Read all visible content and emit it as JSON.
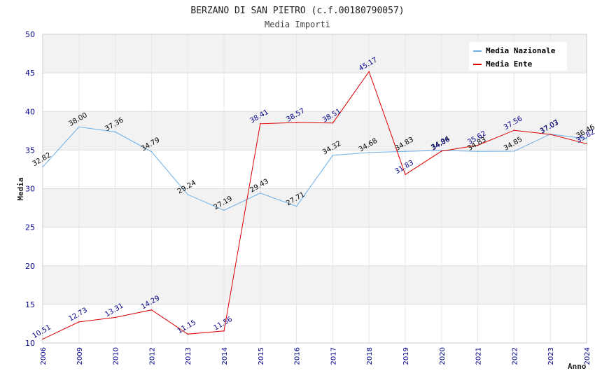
{
  "chart_data": {
    "type": "line",
    "title": "BERZANO DI SAN PIETRO (c.f.00180790057)",
    "subtitle": "Media Importi",
    "xlabel": "Anno",
    "ylabel": "Media",
    "ylim": [
      10,
      50
    ],
    "yticks": [
      10,
      15,
      20,
      25,
      30,
      35,
      40,
      45,
      50
    ],
    "categories": [
      "2006",
      "2009",
      "2010",
      "2012",
      "2013",
      "2014",
      "2015",
      "2016",
      "2017",
      "2018",
      "2019",
      "2020",
      "2021",
      "2022",
      "2023",
      "2024"
    ],
    "legend_position": "top-right",
    "grid": true,
    "series": [
      {
        "name": "Media Nazionale",
        "color": "#6aaee8",
        "label_color": "#000000",
        "values": [
          32.82,
          38.0,
          37.36,
          34.79,
          29.24,
          27.19,
          29.43,
          27.71,
          34.32,
          34.68,
          34.83,
          34.94,
          34.83,
          34.85,
          37.07,
          36.46
        ],
        "labels": [
          "32.82",
          "38.00",
          "37.36",
          "34.79",
          "29.24",
          "27.19",
          "29.43",
          "27.71",
          "34.32",
          "34.68",
          "34.83",
          "34.94",
          "34.83",
          "34.85",
          "37.07",
          "36.46"
        ]
      },
      {
        "name": "Media Ente",
        "color": "#dd0000",
        "label_color": "#00008b",
        "values": [
          10.51,
          12.73,
          13.31,
          14.29,
          11.15,
          11.56,
          38.41,
          38.57,
          38.51,
          45.17,
          31.83,
          34.86,
          35.62,
          37.56,
          37.03,
          35.82
        ],
        "labels": [
          "10.51",
          "12.73",
          "13.31",
          "14.29",
          "11.15",
          "11.56",
          "38.41",
          "38.57",
          "38.51",
          "45.17",
          "31.83",
          "34.86",
          "35.62",
          "37.56",
          "37.03",
          "35.82"
        ]
      }
    ]
  }
}
